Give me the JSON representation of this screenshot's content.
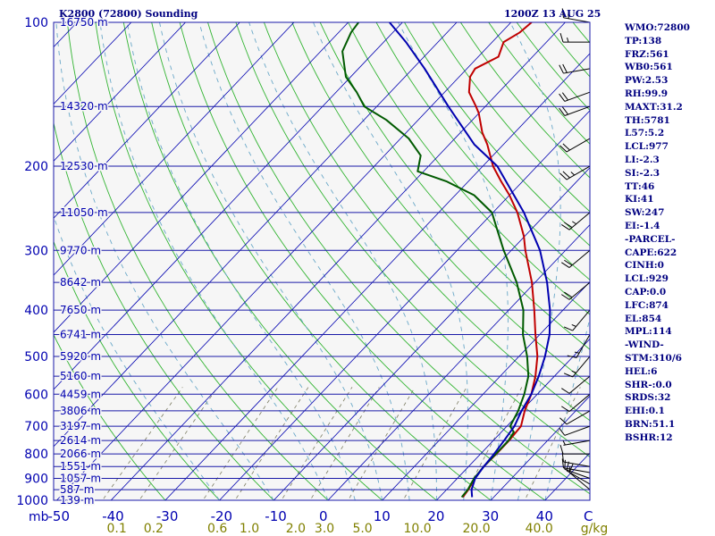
{
  "header": {
    "station": "K2800 (72800) Sounding",
    "time": "1200Z 13 AUG 25"
  },
  "stats": [
    "WMO:72800",
    "TP:138",
    "FRZ:561",
    "WB0:561",
    "PW:2.53",
    "RH:99.9",
    "MAXT:31.2",
    "TH:5781",
    "L57:5.2",
    "LCL:977",
    "LI:-2.3",
    "SI:-2.3",
    "TT:46",
    "KI:41",
    "SW:247",
    "EI:-1.4",
    "-PARCEL-",
    "CAPE:622",
    "CINH:0",
    "LCL:929",
    "CAP:0.0",
    "LFC:874",
    "EL:854",
    "MPL:114",
    "-WIND-",
    "STM:310/6",
    "HEL:6",
    "SHR-:0.0",
    "SRDS:32",
    "EHI:0.1",
    "BRN:51.1",
    "BSHR:12"
  ],
  "chart_data": {
    "type": "line",
    "chart_kind": "Skew-T log-P thermodynamic diagram",
    "pressure_unit_label": "mb",
    "mixing_ratio_unit_label": "g/kg",
    "y_axis": {
      "scale": "log",
      "range": [
        1000,
        100
      ],
      "ticks": [
        100,
        200,
        300,
        400,
        500,
        600,
        700,
        800,
        900,
        1000
      ]
    },
    "x_axis": {
      "range": [
        -50,
        50
      ],
      "ticks": [
        -50,
        -40,
        -30,
        -20,
        -10,
        0,
        10,
        20,
        30,
        40
      ],
      "tick_labels": [
        "-50",
        "-40",
        "-30",
        "-20",
        "-10",
        "0",
        "10",
        "20",
        "30",
        "40"
      ]
    },
    "corner_label": "C",
    "height_labels": [
      {
        "p": 100,
        "label": "16750 m"
      },
      {
        "p": 150,
        "label": "14320 m"
      },
      {
        "p": 200,
        "label": "12530 m"
      },
      {
        "p": 250,
        "label": "11050 m"
      },
      {
        "p": 300,
        "label": "9770 m"
      },
      {
        "p": 350,
        "label": "8642 m"
      },
      {
        "p": 400,
        "label": "7650 m"
      },
      {
        "p": 450,
        "label": "6741 m"
      },
      {
        "p": 500,
        "label": "5920 m"
      },
      {
        "p": 550,
        "label": "5160 m"
      },
      {
        "p": 600,
        "label": "4459 m"
      },
      {
        "p": 650,
        "label": "3806 m"
      },
      {
        "p": 700,
        "label": "3197 m"
      },
      {
        "p": 750,
        "label": "2614 m"
      },
      {
        "p": 800,
        "label": "2066 m"
      },
      {
        "p": 850,
        "label": "1551 m"
      },
      {
        "p": 900,
        "label": "1057 m"
      },
      {
        "p": 950,
        "label": "587 m"
      },
      {
        "p": 1000,
        "label": "139 m"
      }
    ],
    "mixing_ratio_labels": [
      "0.1",
      "0.2",
      "0.6",
      "1.0",
      "2.0",
      "3.0",
      "5.0",
      "10.0",
      "20.0",
      "40.0"
    ],
    "mixing_ratio_values": [
      0.1,
      0.2,
      0.6,
      1.0,
      2.0,
      3.0,
      5.0,
      10.0,
      20.0,
      40.0
    ],
    "isotherm_interval": 10,
    "dry_adiabats_theta_c": [
      -30,
      -20,
      -10,
      0,
      10,
      20,
      30,
      40,
      50,
      60,
      70,
      80,
      90,
      100,
      110,
      120,
      130,
      140,
      150,
      160,
      170,
      180,
      190
    ],
    "moist_adiabats_start_c": [
      -20,
      -10,
      0,
      5,
      10,
      15,
      20,
      25,
      30,
      35,
      40
    ],
    "series": [
      {
        "role": "temperature",
        "color": "#c00000",
        "points": [
          [
            985,
            24.3
          ],
          [
            950,
            24.0
          ],
          [
            900,
            23.2
          ],
          [
            850,
            22.8
          ],
          [
            800,
            22.9
          ],
          [
            750,
            22.9
          ],
          [
            700,
            22.6
          ],
          [
            650,
            20.6
          ],
          [
            600,
            18.9
          ],
          [
            550,
            16.5
          ],
          [
            500,
            13.4
          ],
          [
            450,
            9.2
          ],
          [
            400,
            4.7
          ],
          [
            350,
            -0.6
          ],
          [
            300,
            -7.4
          ],
          [
            280,
            -10.2
          ],
          [
            250,
            -15.5
          ],
          [
            230,
            -20.0
          ],
          [
            215,
            -24.0
          ],
          [
            200,
            -28.1
          ],
          [
            180,
            -33.0
          ],
          [
            170,
            -36.0
          ],
          [
            155,
            -40.0
          ],
          [
            150,
            -41.7
          ],
          [
            140,
            -45.5
          ],
          [
            130,
            -48.0
          ],
          [
            125,
            -48.5
          ],
          [
            118,
            -46.3
          ],
          [
            110,
            -47.9
          ],
          [
            105,
            -46.6
          ],
          [
            100,
            -46.2
          ]
        ]
      },
      {
        "role": "dewpoint",
        "color": "#005a00",
        "points": [
          [
            985,
            24.1
          ],
          [
            950,
            23.9
          ],
          [
            900,
            23.1
          ],
          [
            850,
            22.8
          ],
          [
            800,
            22.8
          ],
          [
            750,
            22.8
          ],
          [
            720,
            22.3
          ],
          [
            700,
            20.6
          ],
          [
            650,
            19.4
          ],
          [
            600,
            17.6
          ],
          [
            550,
            15.2
          ],
          [
            500,
            11.5
          ],
          [
            450,
            6.9
          ],
          [
            400,
            2.7
          ],
          [
            350,
            -3.4
          ],
          [
            300,
            -11.4
          ],
          [
            270,
            -16.5
          ],
          [
            250,
            -20.2
          ],
          [
            230,
            -26.5
          ],
          [
            215,
            -34.1
          ],
          [
            205,
            -41.1
          ],
          [
            190,
            -43.3
          ],
          [
            175,
            -48.5
          ],
          [
            160,
            -55.9
          ],
          [
            150,
            -62.3
          ],
          [
            140,
            -66.2
          ],
          [
            130,
            -70.9
          ],
          [
            115,
            -76.0
          ],
          [
            105,
            -77.7
          ],
          [
            100,
            -78.1
          ]
        ]
      },
      {
        "role": "parcel",
        "color": "#0000b0",
        "points": [
          [
            985,
            26.0
          ],
          [
            950,
            24.6
          ],
          [
            900,
            23.3
          ],
          [
            850,
            22.8
          ],
          [
            800,
            22.5
          ],
          [
            750,
            22.0
          ],
          [
            700,
            21.4
          ],
          [
            650,
            20.0
          ],
          [
            600,
            18.9
          ],
          [
            550,
            17.1
          ],
          [
            500,
            14.8
          ],
          [
            450,
            11.8
          ],
          [
            400,
            7.6
          ],
          [
            350,
            2.2
          ],
          [
            300,
            -4.7
          ],
          [
            250,
            -14.3
          ],
          [
            200,
            -27.3
          ],
          [
            180,
            -35.4
          ],
          [
            150,
            -46.8
          ],
          [
            125,
            -57.8
          ],
          [
            110,
            -65.9
          ],
          [
            100,
            -72.4
          ]
        ]
      }
    ],
    "wind_profile": [
      {
        "p": 950,
        "dir": 310,
        "spd": 10
      },
      {
        "p": 925,
        "dir": 300,
        "spd": 10
      },
      {
        "p": 900,
        "dir": 290,
        "spd": 15
      },
      {
        "p": 875,
        "dir": 280,
        "spd": 10
      },
      {
        "p": 850,
        "dir": 280,
        "spd": 10
      },
      {
        "p": 800,
        "dir": 270,
        "spd": 10
      },
      {
        "p": 750,
        "dir": 260,
        "spd": 5
      },
      {
        "p": 700,
        "dir": 250,
        "spd": 10
      },
      {
        "p": 650,
        "dir": 240,
        "spd": 10
      },
      {
        "p": 600,
        "dir": 230,
        "spd": 10
      },
      {
        "p": 550,
        "dir": 230,
        "spd": 10
      },
      {
        "p": 500,
        "dir": 220,
        "spd": 15
      },
      {
        "p": 450,
        "dir": 210,
        "spd": 15
      },
      {
        "p": 400,
        "dir": 220,
        "spd": 15
      },
      {
        "p": 350,
        "dir": 230,
        "spd": 20
      },
      {
        "p": 300,
        "dir": 230,
        "spd": 20
      },
      {
        "p": 250,
        "dir": 230,
        "spd": 25
      },
      {
        "p": 200,
        "dir": 240,
        "spd": 25
      },
      {
        "p": 175,
        "dir": 240,
        "spd": 20
      },
      {
        "p": 150,
        "dir": 250,
        "spd": 20
      },
      {
        "p": 140,
        "dir": 250,
        "spd": 20
      },
      {
        "p": 125,
        "dir": 260,
        "spd": 20
      },
      {
        "p": 110,
        "dir": 270,
        "spd": 15
      },
      {
        "p": 100,
        "dir": 280,
        "spd": 15
      }
    ],
    "colors": {
      "isobar": "#1a1aa8",
      "isotherm": "#0000b0",
      "dry_adiabat": "#32b432",
      "moist_adiabat": "#6aa8c8",
      "mixing_ratio": "#7a7a60",
      "background": "#f6f6f6",
      "text": "#0000b0",
      "mixing_text": "#808000"
    }
  }
}
